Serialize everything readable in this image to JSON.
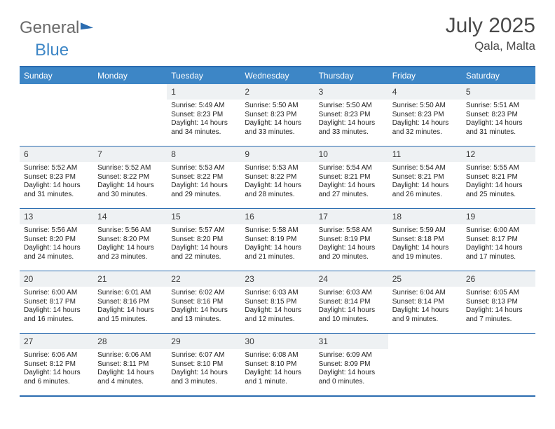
{
  "logo": {
    "word1": "General",
    "word2": "Blue"
  },
  "title": "July 2025",
  "location": "Qala, Malta",
  "colors": {
    "brand_blue": "#3d86c6",
    "rule_blue": "#2b6cb0",
    "daynum_bg": "#eef1f3",
    "text": "#333333",
    "logo_gray": "#6a6a6a"
  },
  "days_of_week": [
    "Sunday",
    "Monday",
    "Tuesday",
    "Wednesday",
    "Thursday",
    "Friday",
    "Saturday"
  ],
  "weeks": [
    [
      null,
      null,
      {
        "n": "1",
        "sr": "5:49 AM",
        "ss": "8:23 PM",
        "dl": "14 hours and 34 minutes."
      },
      {
        "n": "2",
        "sr": "5:50 AM",
        "ss": "8:23 PM",
        "dl": "14 hours and 33 minutes."
      },
      {
        "n": "3",
        "sr": "5:50 AM",
        "ss": "8:23 PM",
        "dl": "14 hours and 33 minutes."
      },
      {
        "n": "4",
        "sr": "5:50 AM",
        "ss": "8:23 PM",
        "dl": "14 hours and 32 minutes."
      },
      {
        "n": "5",
        "sr": "5:51 AM",
        "ss": "8:23 PM",
        "dl": "14 hours and 31 minutes."
      }
    ],
    [
      {
        "n": "6",
        "sr": "5:52 AM",
        "ss": "8:23 PM",
        "dl": "14 hours and 31 minutes."
      },
      {
        "n": "7",
        "sr": "5:52 AM",
        "ss": "8:22 PM",
        "dl": "14 hours and 30 minutes."
      },
      {
        "n": "8",
        "sr": "5:53 AM",
        "ss": "8:22 PM",
        "dl": "14 hours and 29 minutes."
      },
      {
        "n": "9",
        "sr": "5:53 AM",
        "ss": "8:22 PM",
        "dl": "14 hours and 28 minutes."
      },
      {
        "n": "10",
        "sr": "5:54 AM",
        "ss": "8:21 PM",
        "dl": "14 hours and 27 minutes."
      },
      {
        "n": "11",
        "sr": "5:54 AM",
        "ss": "8:21 PM",
        "dl": "14 hours and 26 minutes."
      },
      {
        "n": "12",
        "sr": "5:55 AM",
        "ss": "8:21 PM",
        "dl": "14 hours and 25 minutes."
      }
    ],
    [
      {
        "n": "13",
        "sr": "5:56 AM",
        "ss": "8:20 PM",
        "dl": "14 hours and 24 minutes."
      },
      {
        "n": "14",
        "sr": "5:56 AM",
        "ss": "8:20 PM",
        "dl": "14 hours and 23 minutes."
      },
      {
        "n": "15",
        "sr": "5:57 AM",
        "ss": "8:20 PM",
        "dl": "14 hours and 22 minutes."
      },
      {
        "n": "16",
        "sr": "5:58 AM",
        "ss": "8:19 PM",
        "dl": "14 hours and 21 minutes."
      },
      {
        "n": "17",
        "sr": "5:58 AM",
        "ss": "8:19 PM",
        "dl": "14 hours and 20 minutes."
      },
      {
        "n": "18",
        "sr": "5:59 AM",
        "ss": "8:18 PM",
        "dl": "14 hours and 19 minutes."
      },
      {
        "n": "19",
        "sr": "6:00 AM",
        "ss": "8:17 PM",
        "dl": "14 hours and 17 minutes."
      }
    ],
    [
      {
        "n": "20",
        "sr": "6:00 AM",
        "ss": "8:17 PM",
        "dl": "14 hours and 16 minutes."
      },
      {
        "n": "21",
        "sr": "6:01 AM",
        "ss": "8:16 PM",
        "dl": "14 hours and 15 minutes."
      },
      {
        "n": "22",
        "sr": "6:02 AM",
        "ss": "8:16 PM",
        "dl": "14 hours and 13 minutes."
      },
      {
        "n": "23",
        "sr": "6:03 AM",
        "ss": "8:15 PM",
        "dl": "14 hours and 12 minutes."
      },
      {
        "n": "24",
        "sr": "6:03 AM",
        "ss": "8:14 PM",
        "dl": "14 hours and 10 minutes."
      },
      {
        "n": "25",
        "sr": "6:04 AM",
        "ss": "8:14 PM",
        "dl": "14 hours and 9 minutes."
      },
      {
        "n": "26",
        "sr": "6:05 AM",
        "ss": "8:13 PM",
        "dl": "14 hours and 7 minutes."
      }
    ],
    [
      {
        "n": "27",
        "sr": "6:06 AM",
        "ss": "8:12 PM",
        "dl": "14 hours and 6 minutes."
      },
      {
        "n": "28",
        "sr": "6:06 AM",
        "ss": "8:11 PM",
        "dl": "14 hours and 4 minutes."
      },
      {
        "n": "29",
        "sr": "6:07 AM",
        "ss": "8:10 PM",
        "dl": "14 hours and 3 minutes."
      },
      {
        "n": "30",
        "sr": "6:08 AM",
        "ss": "8:10 PM",
        "dl": "14 hours and 1 minute."
      },
      {
        "n": "31",
        "sr": "6:09 AM",
        "ss": "8:09 PM",
        "dl": "14 hours and 0 minutes."
      },
      null,
      null
    ]
  ],
  "labels": {
    "sunrise_prefix": "Sunrise: ",
    "sunset_prefix": "Sunset: ",
    "daylight_prefix": "Daylight: "
  }
}
